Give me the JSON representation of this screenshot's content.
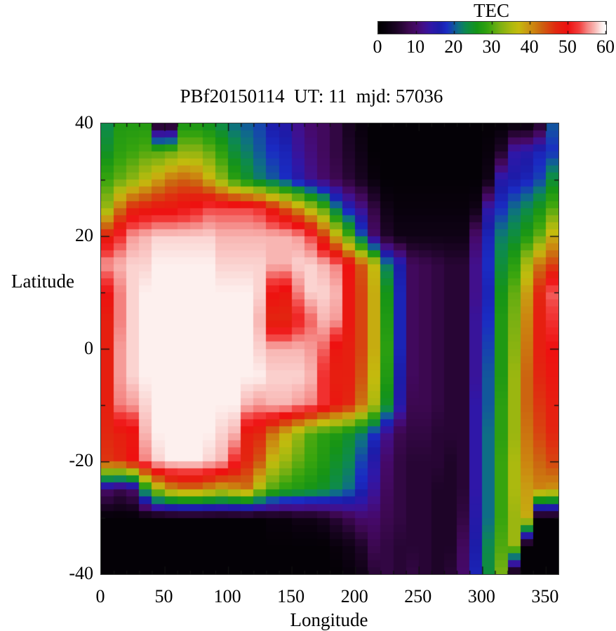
{
  "chart_data": {
    "type": "heatmap",
    "title": "PBf20150114  UT: 11  mjd: 57036",
    "xlabel": "Longitude",
    "ylabel": "Latitude",
    "xlim": [
      0,
      360
    ],
    "ylim": [
      -40,
      40
    ],
    "xticks": [
      0,
      50,
      100,
      150,
      200,
      250,
      300,
      350
    ],
    "xticks_minor_step": 10,
    "yticks": [
      40,
      20,
      0,
      -20,
      -40
    ],
    "yticks_minor_step": 10,
    "grid_lines": false,
    "colorbar": {
      "title": "TEC",
      "min": 0,
      "max": 60,
      "ticks": [
        0,
        10,
        20,
        30,
        40,
        50,
        60
      ],
      "position": "top-right"
    },
    "palette_stops": [
      [
        0,
        "#000000"
      ],
      [
        2,
        "#08010c"
      ],
      [
        5,
        "#1e0428"
      ],
      [
        8,
        "#3c0850"
      ],
      [
        10,
        "#46096a"
      ],
      [
        12,
        "#41108c"
      ],
      [
        14,
        "#2f17a8"
      ],
      [
        16,
        "#1c1ca8"
      ],
      [
        18,
        "#1a2cc4"
      ],
      [
        21,
        "#0e6e86"
      ],
      [
        23,
        "#0d8a4e"
      ],
      [
        26,
        "#159416"
      ],
      [
        29,
        "#37a40e"
      ],
      [
        32,
        "#7ab012"
      ],
      [
        35,
        "#abb90f"
      ],
      [
        37,
        "#c4bb0d"
      ],
      [
        39,
        "#c89d12"
      ],
      [
        41,
        "#cc8410"
      ],
      [
        43,
        "#cc6410"
      ],
      [
        45,
        "#d84410"
      ],
      [
        47,
        "#e22610"
      ],
      [
        50,
        "#ee1010"
      ],
      [
        53,
        "#f2403e"
      ],
      [
        55,
        "#f4817e"
      ],
      [
        57,
        "#f8b5b2"
      ],
      [
        59,
        "#fdf0ee"
      ],
      [
        60,
        "#ffffff"
      ],
      [
        63,
        "#ffffff"
      ]
    ],
    "grid": {
      "lon_step": 10,
      "lon_centers_start": 5,
      "lat_rows": [
        40,
        35,
        30,
        25,
        20,
        15,
        10,
        5,
        0,
        -5,
        -10,
        -15,
        -20,
        -25,
        -30,
        -35,
        -40
      ],
      "tec_values": [
        [
          23,
          27,
          27,
          27,
          3,
          3,
          26,
          26,
          25,
          23,
          21,
          20,
          19,
          16,
          15,
          12,
          10,
          9,
          7,
          4,
          2,
          1,
          1,
          1,
          1,
          1,
          1,
          1,
          1,
          1,
          1,
          1,
          1,
          1,
          5,
          20
        ],
        [
          25,
          28,
          29,
          30,
          30,
          31,
          33,
          33,
          31,
          28,
          24,
          22,
          20,
          18,
          17,
          13,
          11,
          9,
          7,
          5,
          3,
          1,
          1,
          1,
          1,
          1,
          1,
          1,
          1,
          1,
          2,
          5,
          14,
          15,
          17,
          18
        ],
        [
          29,
          31,
          33,
          36,
          39,
          42,
          43,
          42,
          38,
          33,
          28,
          25,
          22,
          20,
          18,
          15,
          12,
          10,
          8,
          6,
          4,
          2,
          1,
          1,
          1,
          1,
          1,
          1,
          1,
          1,
          3,
          15,
          16,
          17,
          19,
          24
        ],
        [
          34,
          42,
          47,
          48,
          49,
          49,
          50,
          51,
          53,
          53,
          53,
          53,
          52,
          48,
          44,
          40,
          35,
          30,
          22,
          16,
          12,
          7,
          3,
          2,
          2,
          2,
          2,
          2,
          2,
          3,
          14,
          18,
          21,
          23,
          26,
          30
        ],
        [
          48,
          52,
          56,
          57,
          58,
          58,
          58,
          58,
          58,
          57,
          57,
          57,
          57,
          57,
          57,
          56,
          53,
          46,
          38,
          30,
          20,
          10,
          5,
          3,
          3,
          3,
          3,
          3,
          3,
          10,
          17,
          22,
          24,
          27,
          31,
          38
        ],
        [
          56,
          57,
          58,
          58,
          59,
          59,
          59,
          59,
          59,
          58,
          58,
          58,
          58,
          57,
          57,
          58,
          58,
          57,
          55,
          50,
          44,
          37,
          22,
          16,
          9,
          8,
          7,
          6,
          6,
          12,
          18,
          24,
          28,
          35,
          42,
          45
        ],
        [
          50,
          55,
          58,
          59,
          59,
          59,
          59,
          59,
          59,
          59,
          59,
          59,
          58,
          50,
          49,
          55,
          58,
          58,
          57,
          49,
          45,
          38,
          26,
          17,
          9,
          8,
          7,
          6,
          6,
          12,
          17,
          26,
          31,
          39,
          47,
          54
        ],
        [
          48,
          55,
          58,
          59,
          59,
          59,
          59,
          59,
          59,
          59,
          59,
          59,
          57,
          47,
          47,
          51,
          54,
          57,
          56,
          49,
          45,
          38,
          27,
          17,
          9,
          8,
          7,
          6,
          6,
          13,
          18,
          27,
          32,
          41,
          48,
          52
        ],
        [
          48,
          56,
          58,
          59,
          59,
          59,
          59,
          59,
          59,
          59,
          59,
          59,
          58,
          57,
          57,
          57,
          56,
          54,
          49,
          48,
          45,
          38,
          28,
          17,
          9,
          8,
          7,
          6,
          6,
          13,
          19,
          27,
          33,
          42,
          48,
          50
        ],
        [
          48,
          56,
          58,
          59,
          59,
          59,
          59,
          59,
          59,
          59,
          59,
          59,
          59,
          58,
          58,
          58,
          57,
          52,
          48,
          48,
          44,
          37,
          27,
          16,
          9,
          8,
          7,
          6,
          6,
          13,
          20,
          27,
          34,
          43,
          47,
          49
        ],
        [
          48,
          55,
          56,
          58,
          59,
          59,
          59,
          59,
          59,
          59,
          59,
          57,
          56,
          57,
          57,
          56,
          55,
          52,
          49,
          47,
          42,
          35,
          25,
          15,
          8,
          8,
          7,
          6,
          6,
          14,
          20,
          28,
          34,
          43,
          46,
          48
        ],
        [
          47,
          48,
          49,
          57,
          59,
          59,
          59,
          59,
          59,
          58,
          57,
          48,
          47,
          42,
          38,
          34,
          30,
          28,
          27,
          25,
          22,
          18,
          12,
          8,
          7,
          7,
          6,
          6,
          6,
          14,
          21,
          28,
          34,
          42,
          45,
          47
        ],
        [
          46,
          47,
          50,
          55,
          58,
          59,
          59,
          59,
          58,
          57,
          52,
          47,
          44,
          37,
          34,
          31,
          29,
          27,
          25,
          23,
          19,
          15,
          10,
          7,
          6,
          6,
          6,
          5,
          6,
          14,
          21,
          29,
          35,
          41,
          43,
          45
        ],
        [
          10,
          8,
          10,
          25,
          35,
          40,
          42,
          42,
          40,
          38,
          40,
          42,
          35,
          30,
          28,
          27,
          26,
          25,
          23,
          21,
          17,
          13,
          9,
          7,
          6,
          6,
          5,
          5,
          6,
          14,
          21,
          29,
          35,
          39,
          41,
          40
        ],
        [
          1,
          1,
          1,
          1,
          1,
          1,
          1,
          1,
          1,
          1,
          1,
          1,
          1,
          2,
          2,
          3,
          3,
          4,
          6,
          8,
          10,
          10,
          8,
          7,
          6,
          6,
          5,
          5,
          7,
          15,
          21,
          29,
          34,
          38,
          1,
          1
        ],
        [
          1,
          1,
          1,
          1,
          1,
          1,
          1,
          1,
          1,
          1,
          1,
          1,
          1,
          1,
          1,
          1,
          1,
          1,
          2,
          3,
          5,
          8,
          7,
          6,
          6,
          6,
          5,
          5,
          9,
          16,
          23,
          30,
          34,
          1,
          1,
          1
        ],
        [
          1,
          1,
          1,
          1,
          1,
          1,
          1,
          1,
          1,
          1,
          1,
          1,
          1,
          1,
          1,
          1,
          1,
          1,
          1,
          2,
          3,
          6,
          7,
          6,
          7,
          6,
          5,
          6,
          10,
          17,
          24,
          32,
          1,
          1,
          1,
          1
        ]
      ]
    }
  },
  "layout_colors": {
    "border": "#3a3a3a",
    "tick": "#111111",
    "background": "#ffffff"
  }
}
